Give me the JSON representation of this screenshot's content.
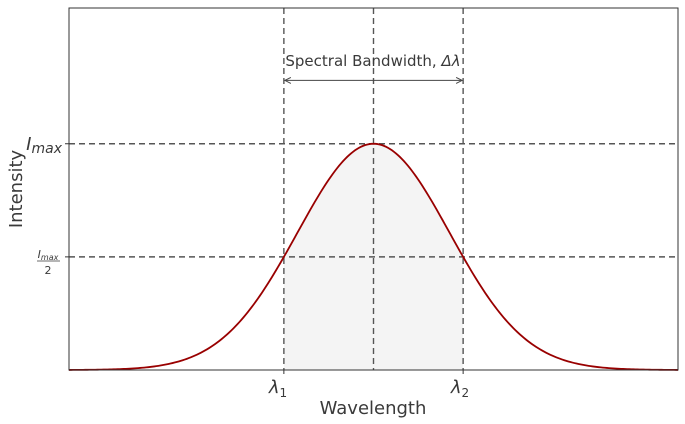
{
  "chart_data": {
    "type": "line",
    "title": "",
    "xlabel": "Wavelength",
    "ylabel": "Intensity",
    "xlim": [
      -4,
      4
    ],
    "ylim": [
      0,
      1.6
    ],
    "grid": false,
    "series": [
      {
        "function": "gaussian",
        "mean": 0,
        "sigma": 1,
        "amplitude": 1,
        "color": "#990000"
      }
    ],
    "fill_between": {
      "from": -1.1774,
      "to": 1.1774,
      "color": "#f4f4f4"
    },
    "x_ticks": [
      {
        "value": -1.1774,
        "label_main": "λ",
        "label_sub": "1"
      },
      {
        "value": 1.1774,
        "label_main": "λ",
        "label_sub": "2"
      }
    ],
    "y_ticks": [
      {
        "value": 1,
        "label_main": "I",
        "label_sub": "max"
      },
      {
        "value": 0.5,
        "label_main": "I",
        "label_sub": "max",
        "label_den": "2"
      }
    ],
    "reference_lines": {
      "vertical": [
        -1.1774,
        0,
        1.1774
      ],
      "horizontal": [
        1,
        0.5
      ],
      "style": "dashed",
      "color": "#555555"
    },
    "annotation": {
      "text": "Spectral Bandwidth, ",
      "symbol": "Δλ",
      "arrow_from": -1.1774,
      "arrow_to": 1.1774,
      "arrow_y": 1.28
    }
  }
}
